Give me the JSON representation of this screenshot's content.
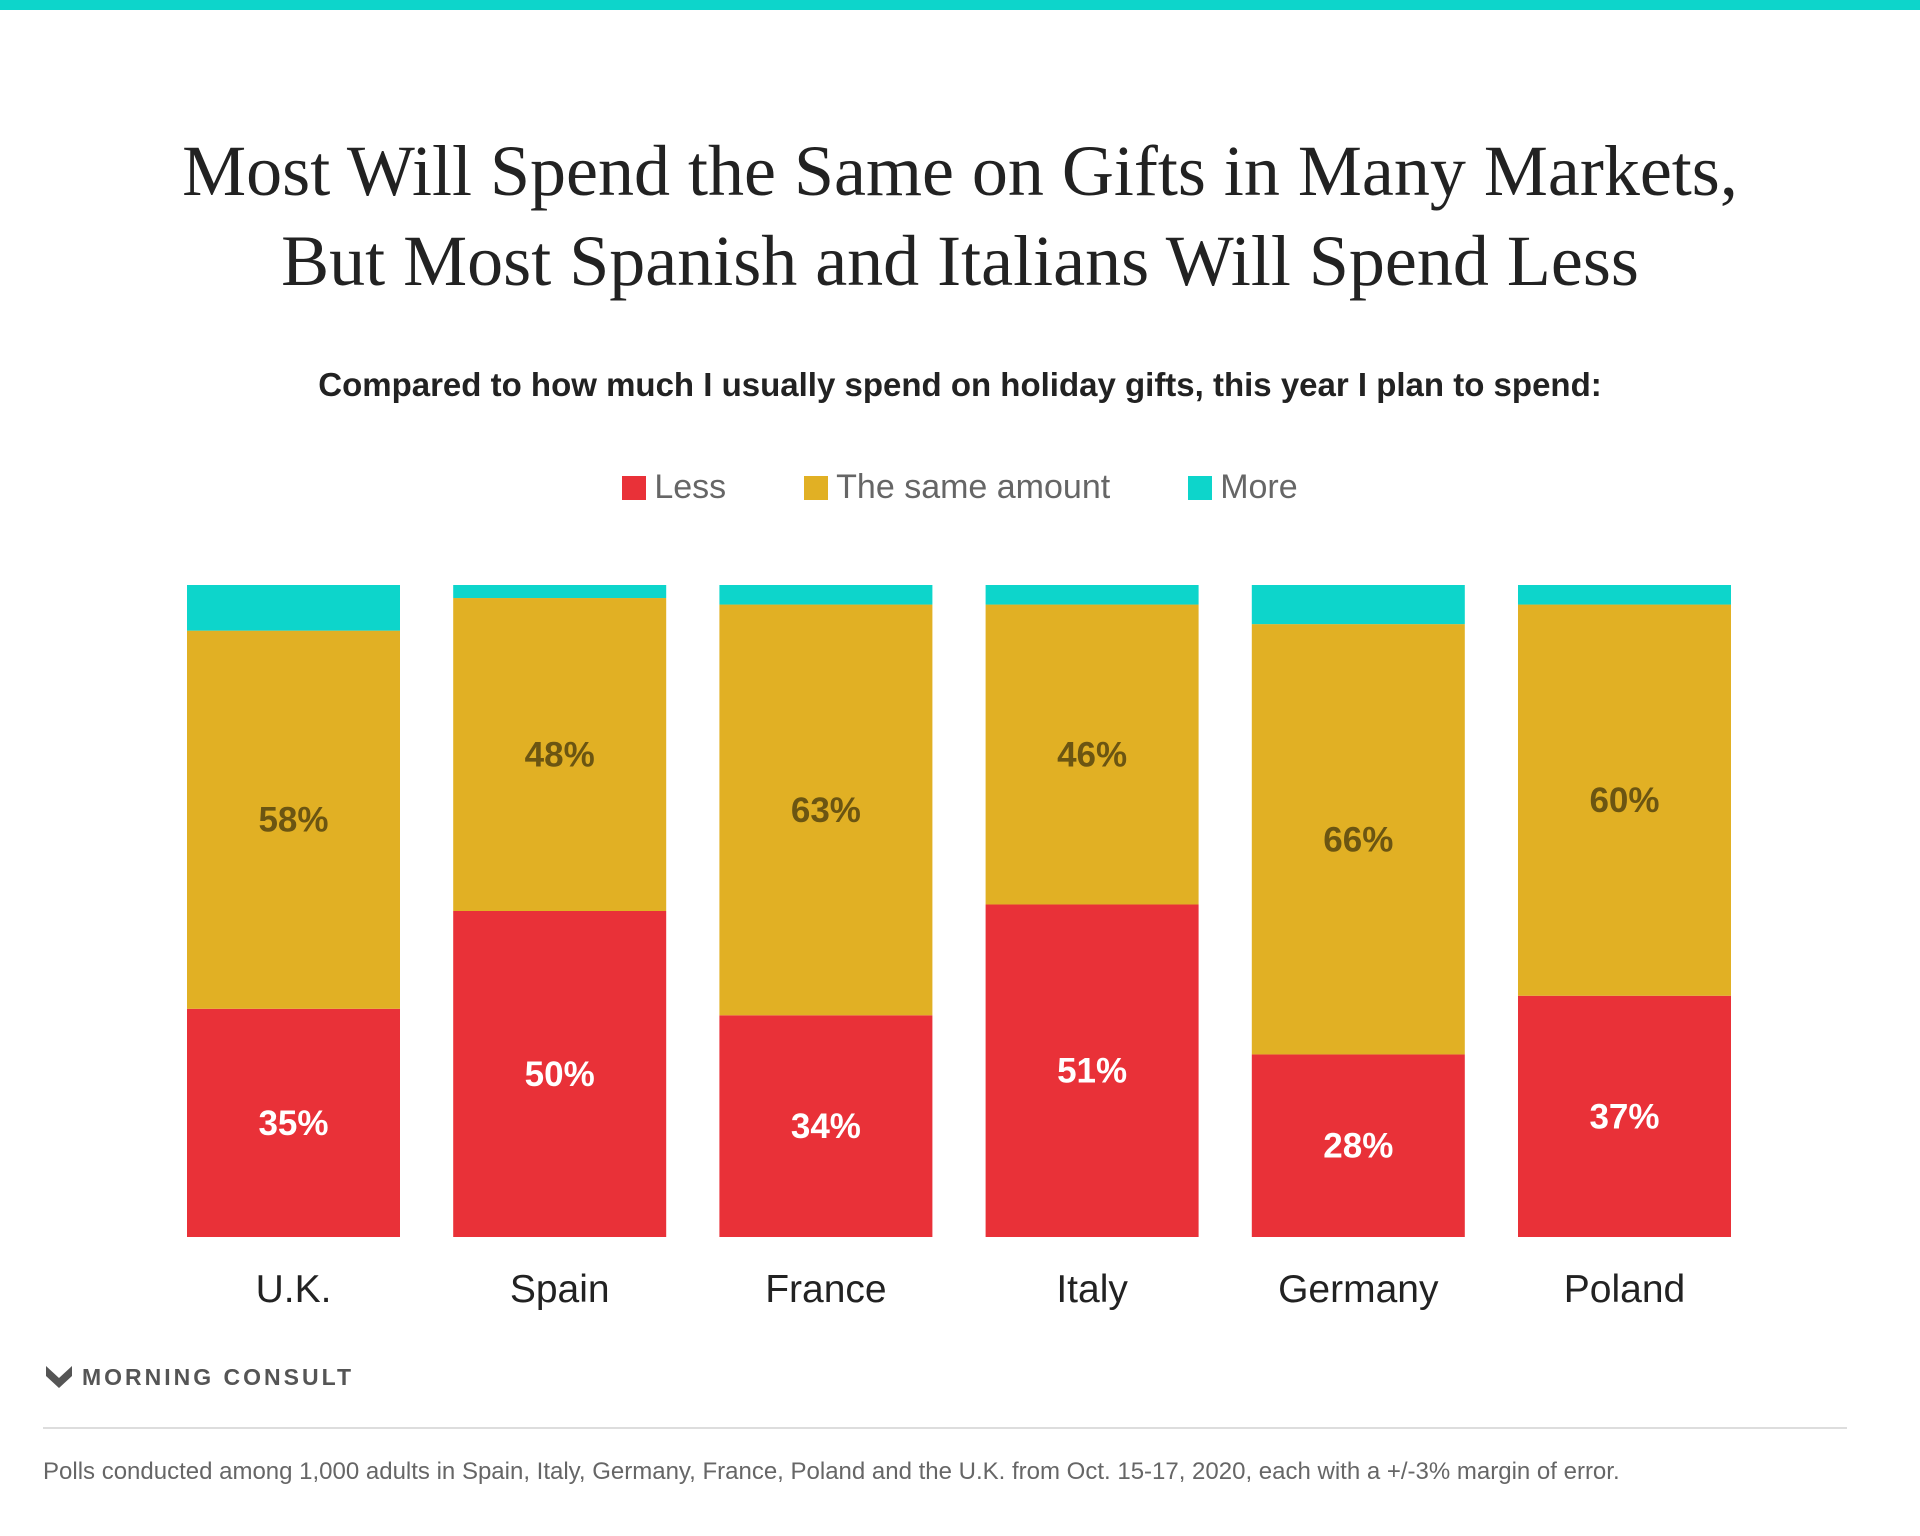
{
  "chart_data": {
    "type": "bar",
    "stacked": true,
    "title": "Most Will Spend the Same on Gifts in Many Markets, But Most Spanish and Italians Will Spend Less",
    "title_lines": [
      "Most Will Spend the Same on Gifts in Many Markets,",
      "But Most Spanish and Italians Will Spend Less"
    ],
    "subtitle": "Compared to how much I usually spend on holiday gifts, this year I plan to spend:",
    "categories": [
      "U.K.",
      "Spain",
      "France",
      "Italy",
      "Germany",
      "Poland"
    ],
    "series": [
      {
        "name": "Less",
        "color": "#e93138",
        "values": [
          35,
          50,
          34,
          51,
          28,
          37
        ],
        "label_color": "#ffffff"
      },
      {
        "name": "The same amount",
        "color": "#e1b024",
        "values": [
          58,
          48,
          63,
          46,
          66,
          60
        ],
        "label_color": "#6b5512"
      },
      {
        "name": "More",
        "color": "#0dd5cb",
        "values": [
          7,
          2,
          3,
          3,
          6,
          3
        ],
        "label_color": null
      }
    ],
    "ylim": [
      0,
      100
    ],
    "grid": false,
    "legend_position": "top-center",
    "value_format": "%"
  },
  "brand": {
    "name": "MORNING CONSULT",
    "accent": "#0dd5cb"
  },
  "footnote": "Polls conducted among 1,000 adults in Spain, Italy, Germany, France, Poland and the U.K. from Oct. 15-17, 2020, each with a +/-3% margin of error."
}
